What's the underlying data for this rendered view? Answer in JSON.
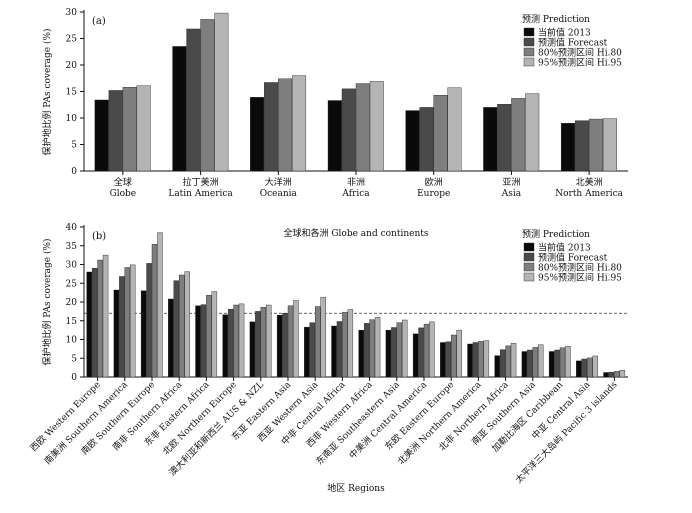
{
  "chart_data": [
    {
      "type": "bar",
      "panel_label": "(a)",
      "ylabel": "保护地比例 PAs coverage (%)",
      "xlabel": "全球和各洲  Globe and continents",
      "ylim": [
        0,
        30
      ],
      "yticks": [
        0,
        5,
        10,
        15,
        20,
        25,
        30
      ],
      "categories": [
        {
          "zh": "全球",
          "en": "Globe"
        },
        {
          "zh": "拉丁美洲",
          "en": "Latin America"
        },
        {
          "zh": "大洋洲",
          "en": "Oceania"
        },
        {
          "zh": "非洲",
          "en": "Africa"
        },
        {
          "zh": "欧洲",
          "en": "Europe"
        },
        {
          "zh": "亚洲",
          "en": "Asia"
        },
        {
          "zh": "北美洲",
          "en": "North America"
        }
      ],
      "legend_title": "预测  Prediction",
      "legend_position": "top-right",
      "series": [
        {
          "name": "当前值 2013",
          "color": "#0a0a0a",
          "values": [
            13.4,
            23.5,
            13.9,
            13.3,
            11.4,
            12.0,
            9.0
          ]
        },
        {
          "name": "预测值 Forecast",
          "color": "#4a4a4a",
          "values": [
            15.2,
            26.8,
            16.7,
            15.5,
            12.0,
            12.6,
            9.5
          ]
        },
        {
          "name": "80%预测区间  Hi.80",
          "color": "#7e7e7e",
          "values": [
            15.8,
            28.6,
            17.4,
            16.5,
            14.3,
            13.7,
            9.8
          ]
        },
        {
          "name": "95%预测区间  Hi.95",
          "color": "#b4b4b4",
          "values": [
            16.1,
            29.8,
            18.0,
            16.9,
            15.7,
            14.6,
            9.9
          ]
        }
      ]
    },
    {
      "type": "bar",
      "panel_label": "(b)",
      "ylabel": "保护地比例 PAs coverage (%)",
      "xlabel": "地区  Regions",
      "ylim": [
        0,
        40
      ],
      "yticks": [
        0,
        5,
        10,
        15,
        20,
        25,
        30,
        35,
        40
      ],
      "reference_line": 17,
      "categories": [
        "西欧 Western Europe",
        "南美洲 Southern America",
        "南欧 Southern Europe",
        "南非 Southern Africa",
        "东非 Eastern Africa",
        "北欧 Northern Europe",
        "澳大利亚和新西兰 AUS & NZL",
        "东亚 Eastern Asia",
        "西亚 Western Asia",
        "中非 Central Africa",
        "西非 Western Africa",
        "东南亚 Southeastern Asia",
        "中美洲 Central America",
        "东欧 Eastern Europe",
        "北美洲 Northern America",
        "北非 Northern Africa",
        "南亚 Southern Asia",
        "加勒比海区 Caribbean",
        "中亚 Central Asia",
        "太平洋三大岛屿 Pacific 3 islands"
      ],
      "legend_title": "预测  Prediction",
      "legend_position": "top-right",
      "series": [
        {
          "name": "当前值 2013",
          "color": "#0a0a0a",
          "values": [
            28.0,
            23.2,
            23.0,
            20.8,
            19.0,
            16.6,
            14.7,
            16.5,
            13.3,
            13.6,
            12.5,
            12.5,
            11.5,
            9.2,
            8.8,
            5.7,
            6.8,
            6.8,
            4.3,
            1.2
          ]
        },
        {
          "name": "预测值 Forecast",
          "color": "#4a4a4a",
          "values": [
            29.0,
            26.8,
            30.3,
            25.7,
            19.3,
            18.1,
            17.5,
            17.0,
            14.5,
            14.8,
            14.3,
            13.2,
            13.1,
            9.4,
            9.2,
            7.3,
            7.2,
            7.2,
            4.8,
            1.3
          ]
        },
        {
          "name": "80%预测区间  Hi.80",
          "color": "#7e7e7e",
          "values": [
            31.2,
            29.2,
            35.4,
            27.2,
            21.8,
            19.2,
            18.6,
            19.0,
            18.8,
            17.3,
            15.3,
            14.5,
            14.1,
            11.2,
            9.5,
            8.3,
            7.9,
            7.8,
            5.1,
            1.5
          ]
        },
        {
          "name": "95%预测区间  Hi.95",
          "color": "#b4b4b4",
          "values": [
            32.5,
            29.9,
            38.5,
            28.1,
            22.8,
            19.5,
            19.2,
            20.4,
            21.3,
            18.0,
            15.9,
            15.2,
            14.7,
            12.5,
            9.7,
            9.0,
            8.6,
            8.2,
            5.6,
            1.8
          ]
        }
      ]
    }
  ]
}
